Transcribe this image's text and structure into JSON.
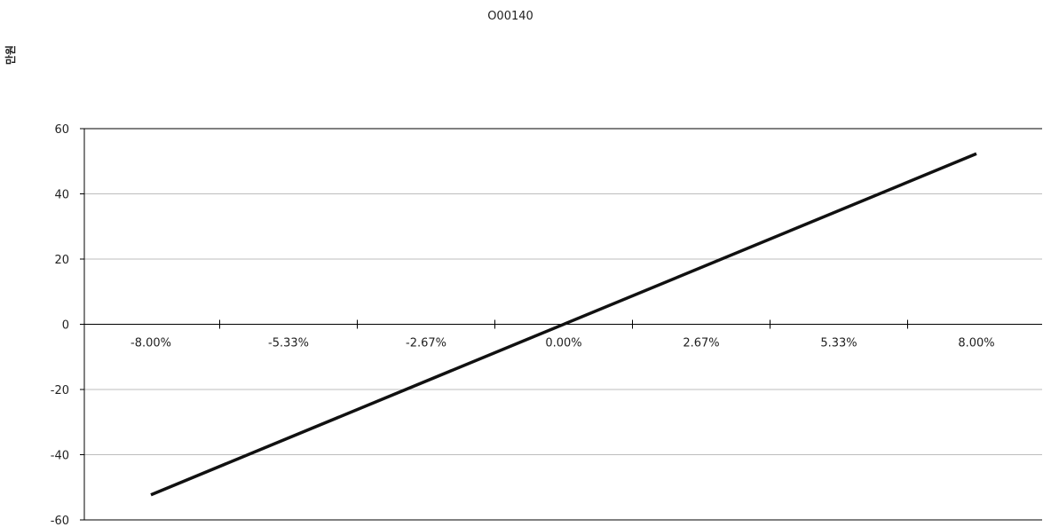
{
  "chart_data": {
    "type": "line",
    "title": "O00140",
    "ylabel": "만원",
    "xlabel": "",
    "x_ticks": [
      "-8.00%",
      "-5.33%",
      "-2.67%",
      "0.00%",
      "2.67%",
      "5.33%",
      "8.00%"
    ],
    "y_ticks": [
      "60",
      "40",
      "20",
      "0",
      "-20",
      "-40",
      "-60"
    ],
    "ylim": [
      -60,
      60
    ],
    "xlim": [
      -8.0,
      8.0
    ],
    "grid": true,
    "legend": "none",
    "series": [
      {
        "x": [
          -8.0,
          8.0
        ],
        "y": [
          -52.3,
          52.3
        ]
      }
    ],
    "colors": {
      "line": "#111111",
      "grid": "#bdbdbd",
      "axis": "#000000"
    }
  }
}
